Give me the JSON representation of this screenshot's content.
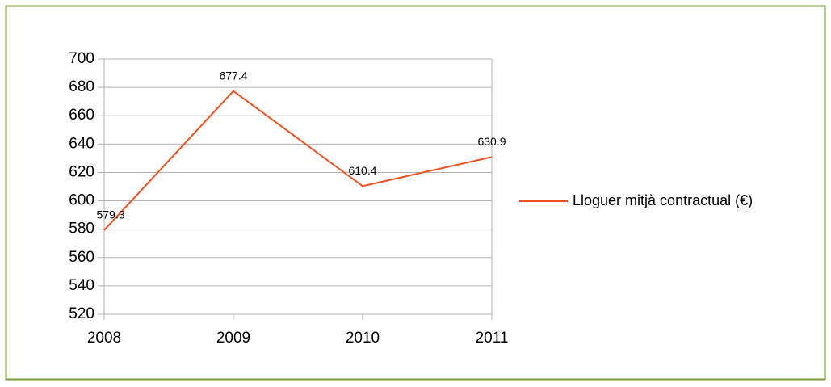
{
  "chart_data": {
    "type": "line",
    "categories": [
      "2008",
      "2009",
      "2010",
      "2011"
    ],
    "series": [
      {
        "name": "Lloguer mitjà contractual (€)",
        "color": "#f0501e",
        "values": [
          579.3,
          677.4,
          610.4,
          630.9
        ]
      }
    ],
    "ylim": [
      520,
      700
    ],
    "yticks": [
      520,
      540,
      560,
      580,
      600,
      620,
      640,
      660,
      680,
      700
    ],
    "grid": true,
    "legend": "right"
  }
}
